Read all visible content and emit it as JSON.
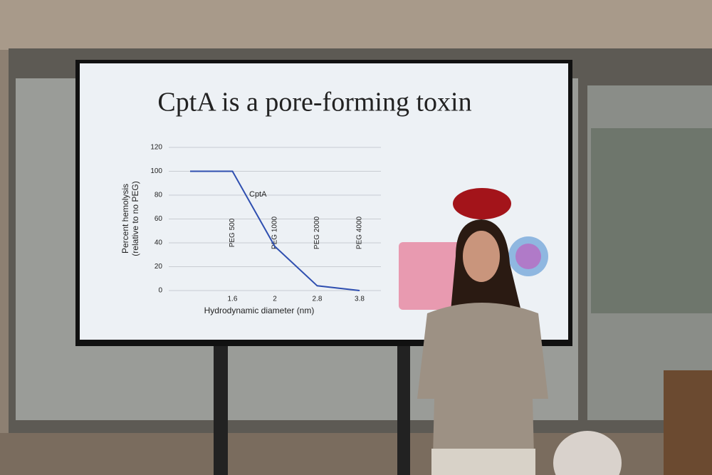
{
  "chart_data": {
    "type": "line",
    "title": "CptA is a pore-forming toxin",
    "y_label": [
      "Percent hemolysis",
      "(relative to no PEG)"
    ],
    "x_label": "Hydrodynamic diameter (nm)",
    "categories": [
      null,
      "1.6",
      "2",
      "2.8",
      "3.8"
    ],
    "series": [
      {
        "name": "CptA",
        "color": "#2f4fb0",
        "values": [
          100,
          100,
          37,
          4,
          0
        ]
      }
    ],
    "annotations": [
      "PEG 500",
      "PEG 1000",
      "PEG 2000",
      "PEG 4000"
    ],
    "ylim": [
      0,
      120
    ],
    "yticks": [
      0,
      20,
      40,
      60,
      80,
      100,
      120
    ],
    "grid": true
  }
}
